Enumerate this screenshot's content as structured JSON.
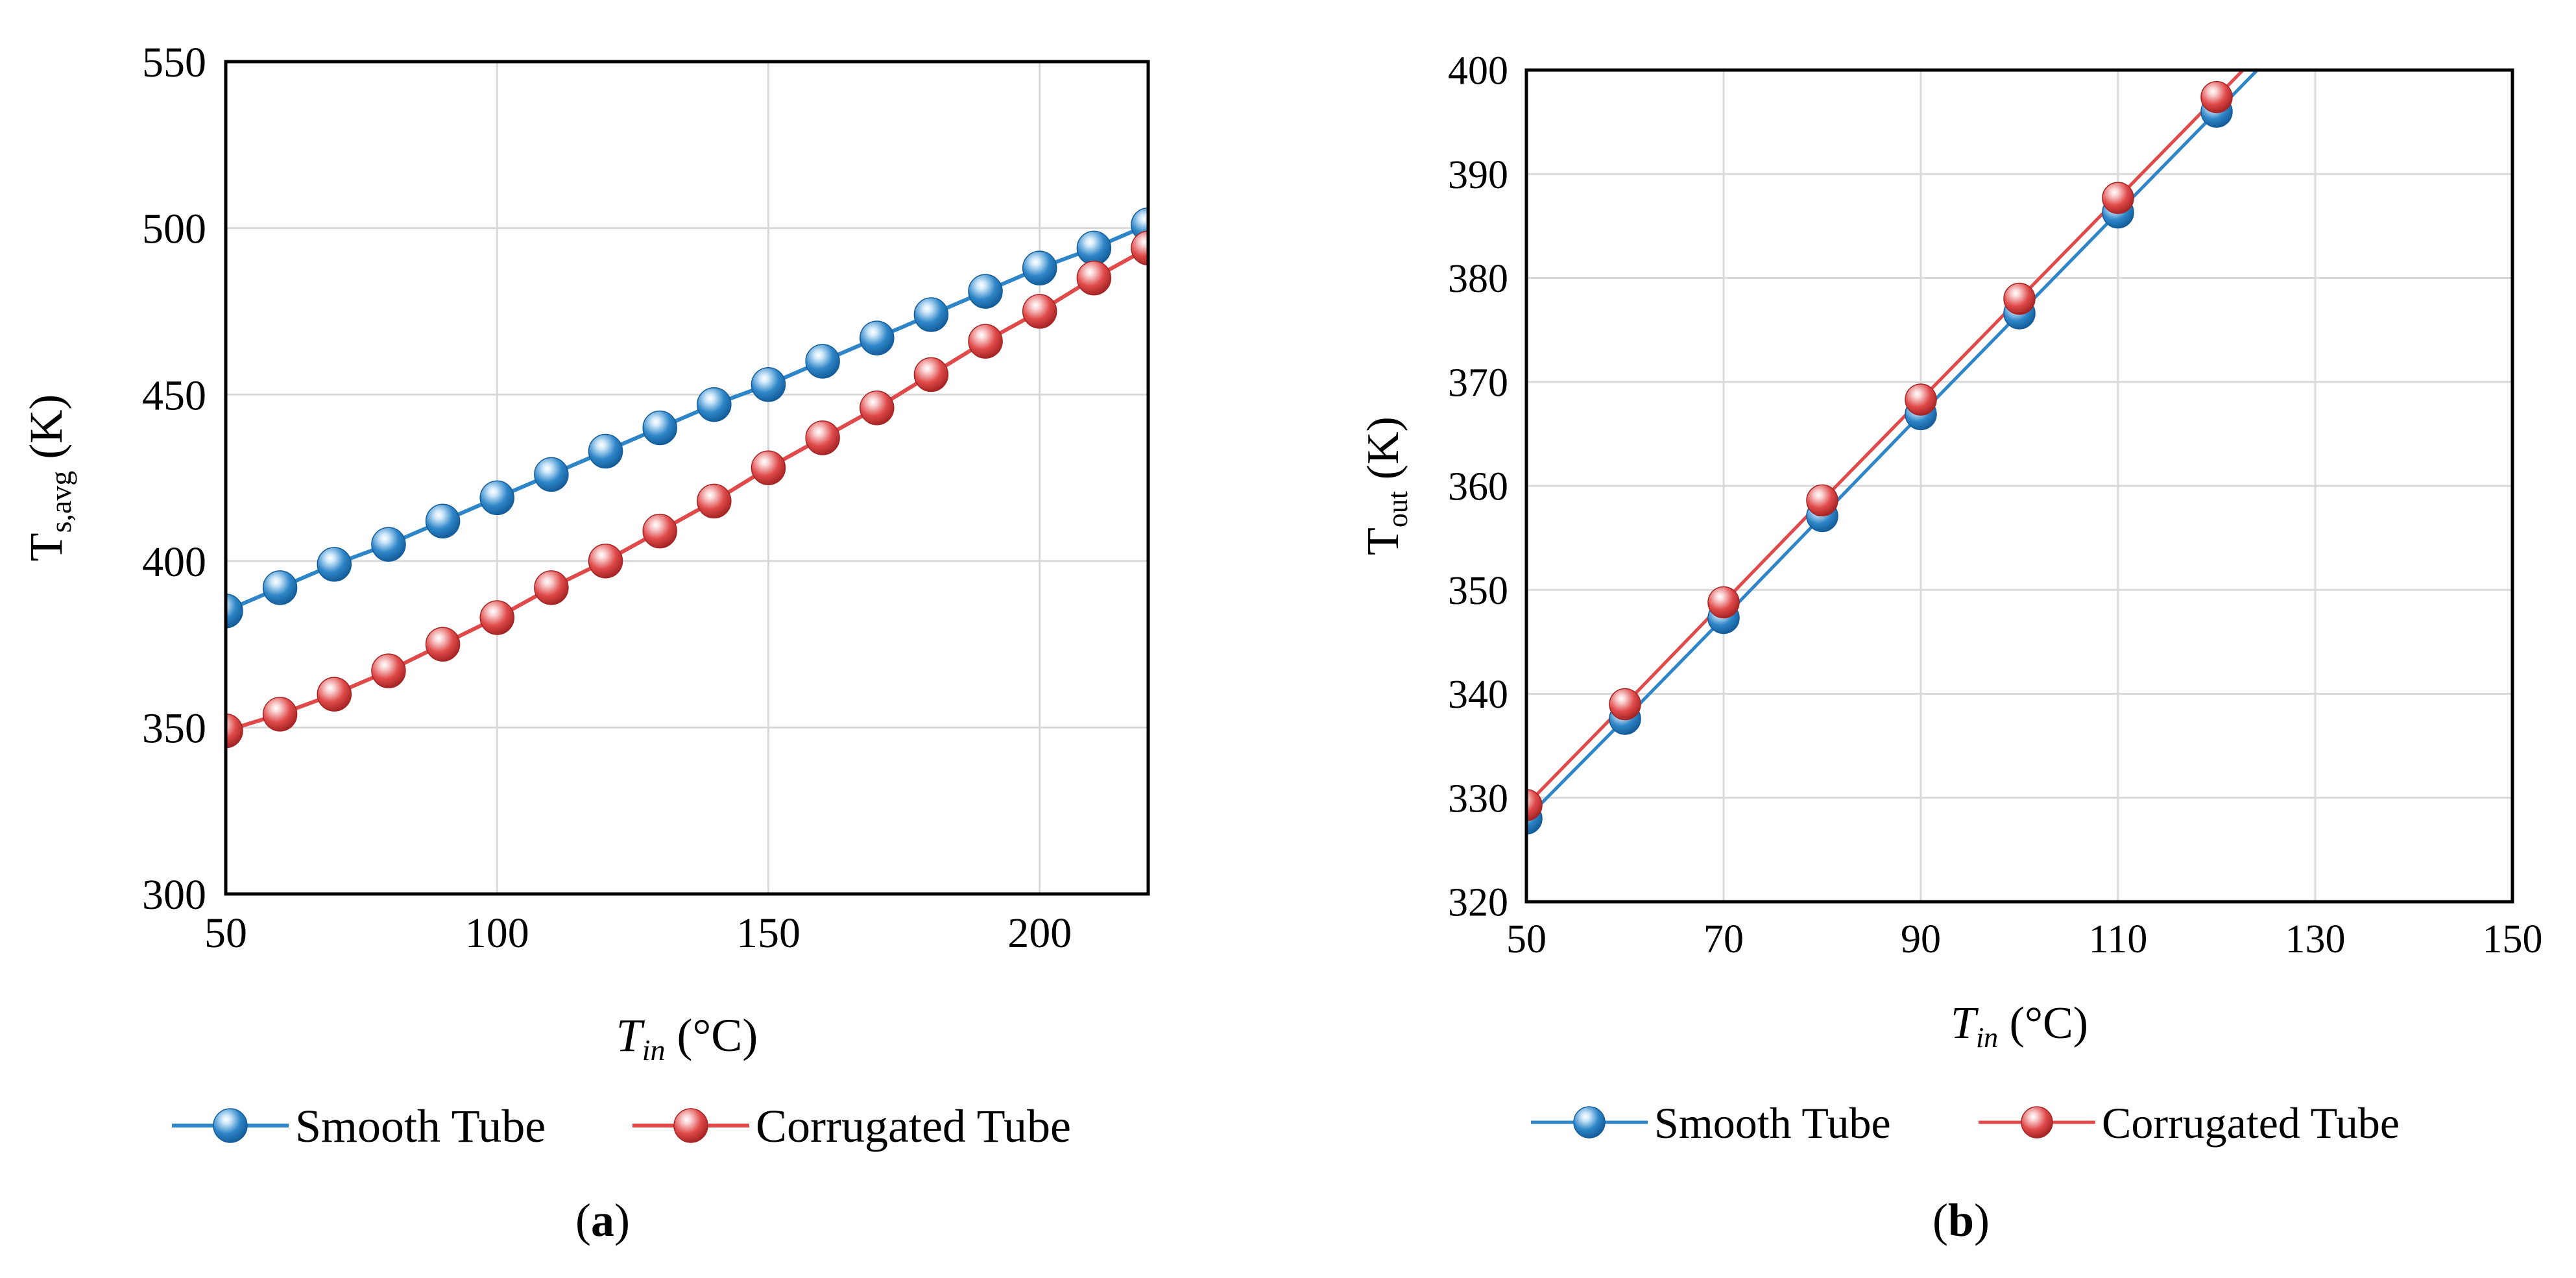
{
  "colors": {
    "smooth": "#2E86C8",
    "smooth_dark": "#145C99",
    "smooth_light": "#CFE8FA",
    "corrugated": "#E04A4A",
    "corrugated_dark": "#A52424",
    "corrugated_light": "#FAD3D3",
    "grid": "#D9D9D9",
    "axis": "#000000"
  },
  "chart_data": [
    {
      "type": "line",
      "panel_label": "a",
      "xlabel": {
        "main": "T",
        "sub": "in",
        "unit": " (°C)"
      },
      "ylabel": {
        "main": "T",
        "sub": "s,avg",
        "unit": " (K)"
      },
      "xlim": [
        50,
        220
      ],
      "ylim": [
        300,
        550
      ],
      "xticks": [
        50,
        100,
        150,
        200
      ],
      "yticks": [
        300,
        350,
        400,
        450,
        500,
        550
      ],
      "grid": true,
      "legend": "bottom",
      "x": [
        50,
        60,
        70,
        80,
        90,
        100,
        110,
        120,
        130,
        140,
        150,
        160,
        170,
        180,
        190,
        200,
        210,
        220
      ],
      "series": [
        {
          "name": "Smooth Tube",
          "color_key": "smooth",
          "values": [
            385,
            392,
            399,
            405,
            412,
            419,
            426,
            433,
            440,
            447,
            453,
            460,
            467,
            474,
            481,
            488,
            494,
            501
          ]
        },
        {
          "name": "Corrugated Tube",
          "color_key": "corrugated",
          "values": [
            349,
            354,
            360,
            367,
            375,
            383,
            392,
            400,
            409,
            418,
            428,
            437,
            446,
            456,
            466,
            475,
            485,
            494
          ]
        }
      ]
    },
    {
      "type": "line",
      "panel_label": "b",
      "xlabel": {
        "main": "T",
        "sub": "in",
        "unit": " (°C)"
      },
      "ylabel": {
        "main": "T",
        "sub": "out",
        "unit": " (K)"
      },
      "xlim": [
        50,
        150
      ],
      "ylim": [
        320,
        400
      ],
      "xticks": [
        50,
        70,
        90,
        110,
        130,
        150
      ],
      "yticks": [
        320,
        330,
        340,
        350,
        360,
        370,
        380,
        390,
        400
      ],
      "grid": true,
      "legend": "bottom",
      "x": [
        50,
        60,
        70,
        80,
        90,
        100,
        110,
        120
      ],
      "series": [
        {
          "name": "Smooth Tube",
          "color_key": "smooth",
          "values": [
            328,
            337.6,
            347.3,
            357.1,
            366.9,
            376.6,
            386.3,
            396
          ]
        },
        {
          "name": "Corrugated Tube",
          "color_key": "corrugated",
          "values": [
            329.3,
            339,
            348.8,
            358.6,
            368.3,
            378,
            387.7,
            397.4
          ]
        }
      ]
    }
  ]
}
